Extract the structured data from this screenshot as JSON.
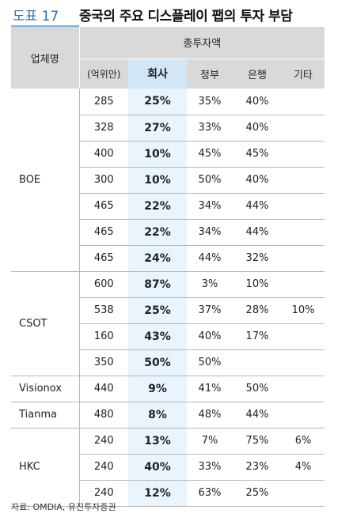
{
  "figure": {
    "label": "도표 17",
    "title": "중국의 주요 디스플레이 팹의 투자 부담"
  },
  "table": {
    "company_header": "업체명",
    "total_header": "총투자액",
    "columns": [
      "(억위안)",
      "회사",
      "정부",
      "은행",
      "기타"
    ],
    "groups": [
      {
        "company": "BOE",
        "rows": [
          [
            "285",
            "25%",
            "35%",
            "40%",
            ""
          ],
          [
            "328",
            "27%",
            "33%",
            "40%",
            ""
          ],
          [
            "400",
            "10%",
            "45%",
            "45%",
            ""
          ],
          [
            "300",
            "10%",
            "50%",
            "40%",
            ""
          ],
          [
            "465",
            "22%",
            "34%",
            "44%",
            ""
          ],
          [
            "465",
            "22%",
            "34%",
            "44%",
            ""
          ],
          [
            "465",
            "24%",
            "44%",
            "32%",
            ""
          ]
        ]
      },
      {
        "company": "CSOT",
        "rows": [
          [
            "600",
            "87%",
            "3%",
            "10%",
            ""
          ],
          [
            "538",
            "25%",
            "37%",
            "28%",
            "10%"
          ],
          [
            "160",
            "43%",
            "40%",
            "17%",
            ""
          ],
          [
            "350",
            "50%",
            "50%",
            "",
            ""
          ]
        ]
      },
      {
        "company": "Visionox",
        "rows": [
          [
            "440",
            "9%",
            "41%",
            "50%",
            ""
          ]
        ]
      },
      {
        "company": "Tianma",
        "rows": [
          [
            "480",
            "8%",
            "48%",
            "44%",
            ""
          ]
        ]
      },
      {
        "company": "HKC",
        "rows": [
          [
            "240",
            "13%",
            "7%",
            "75%",
            "6%"
          ],
          [
            "240",
            "40%",
            "33%",
            "23%",
            "4%"
          ],
          [
            "240",
            "12%",
            "63%",
            "25%",
            ""
          ]
        ]
      }
    ]
  },
  "source": "자료: OMDIA, 유진투자증권"
}
